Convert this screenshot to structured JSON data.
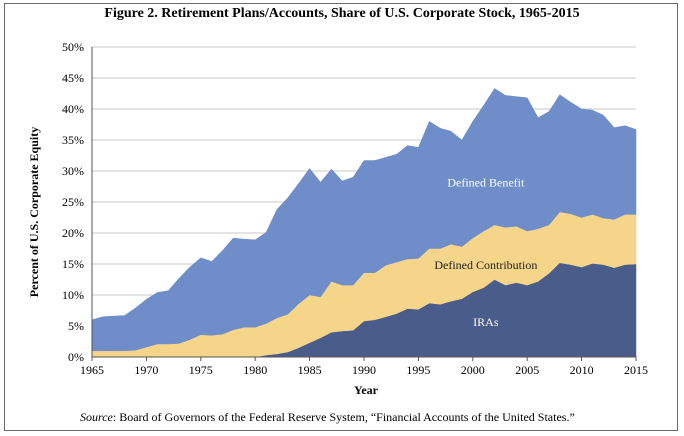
{
  "title": "Figure 2. Retirement Plans/Accounts, Share of U.S. Corporate Stock, 1965-2015",
  "source": {
    "label": "Source",
    "text": ": Board of Governors of the Federal Reserve System, “Financial Accounts of the United States.”"
  },
  "colors": {
    "iras": "#4a5d8a",
    "defined_contribution": "#f5d58a",
    "defined_benefit": "#6f8dc8"
  },
  "chart_data": {
    "type": "area",
    "stacked": true,
    "title": "Figure 2. Retirement Plans/Accounts, Share of U.S. Corporate Stock, 1965-2015",
    "xlabel": "Year",
    "ylabel": "Percent of U.S. Corporate Equity",
    "xlim": [
      1965,
      2015
    ],
    "ylim": [
      0,
      50
    ],
    "x_ticks": [
      "1965",
      "1970",
      "1975",
      "1980",
      "1985",
      "1990",
      "1995",
      "2000",
      "2005",
      "2010",
      "2015"
    ],
    "y_ticks": [
      "0%",
      "5%",
      "10%",
      "15%",
      "20%",
      "25%",
      "30%",
      "35%",
      "40%",
      "45%",
      "50%"
    ],
    "x": [
      1965,
      1966,
      1967,
      1968,
      1969,
      1970,
      1971,
      1972,
      1973,
      1974,
      1975,
      1976,
      1977,
      1978,
      1979,
      1980,
      1981,
      1982,
      1983,
      1984,
      1985,
      1986,
      1987,
      1988,
      1989,
      1990,
      1991,
      1992,
      1993,
      1994,
      1995,
      1996,
      1997,
      1998,
      1999,
      2000,
      2001,
      2002,
      2003,
      2004,
      2005,
      2006,
      2007,
      2008,
      2009,
      2010,
      2011,
      2012,
      2013,
      2014,
      2015
    ],
    "totals_unit": "cumulative percent",
    "series": [
      {
        "name": "IRAs",
        "values": [
          0,
          0,
          0,
          0,
          0,
          0,
          0,
          0,
          0,
          0,
          0,
          0,
          0,
          0,
          0,
          0,
          0.3,
          0.5,
          0.8,
          1.5,
          2.3,
          3.1,
          4.0,
          4.2,
          4.3,
          5.8,
          6.0,
          6.5,
          7.0,
          7.8,
          7.7,
          8.7,
          8.5,
          9.0,
          9.4,
          10.5,
          11.2,
          12.5,
          11.6,
          12.0,
          11.6,
          12.2,
          13.5,
          15.2,
          14.9,
          14.5,
          15.1,
          14.9,
          14.4,
          14.9,
          15.0
        ]
      },
      {
        "name": "Defined Contribution",
        "cumulative": [
          1.0,
          1.0,
          1.0,
          1.0,
          1.1,
          1.6,
          2.1,
          2.1,
          2.2,
          2.8,
          3.6,
          3.5,
          3.7,
          4.4,
          4.8,
          4.8,
          5.4,
          6.3,
          6.9,
          8.6,
          10.0,
          9.7,
          12.2,
          11.6,
          11.6,
          13.6,
          13.6,
          14.8,
          15.3,
          15.8,
          15.9,
          17.5,
          17.5,
          18.2,
          17.8,
          19.2,
          20.3,
          21.3,
          20.9,
          21.1,
          20.3,
          20.7,
          21.3,
          23.4,
          23.1,
          22.5,
          23.0,
          22.4,
          22.2,
          23.0,
          23.0
        ]
      },
      {
        "name": "Defined Benefit",
        "cumulative": [
          6.0,
          6.5,
          6.6,
          6.7,
          7.9,
          9.3,
          10.4,
          10.7,
          12.7,
          14.5,
          16.0,
          15.4,
          17.2,
          19.2,
          19.0,
          18.9,
          20.1,
          23.8,
          25.7,
          28.0,
          30.4,
          28.2,
          30.3,
          28.4,
          29.0,
          31.7,
          31.7,
          32.2,
          32.7,
          34.1,
          33.8,
          38.0,
          36.9,
          36.4,
          35.0,
          38.0,
          40.6,
          43.3,
          42.2,
          42.0,
          41.8,
          38.6,
          39.6,
          42.3,
          41.1,
          40.0,
          39.8,
          39.0,
          37.0,
          37.3,
          36.7
        ]
      }
    ],
    "annotations": [
      "Defined Benefit",
      "Defined Contribution",
      "IRAs"
    ],
    "grid": "horizontal",
    "legend": "none"
  }
}
